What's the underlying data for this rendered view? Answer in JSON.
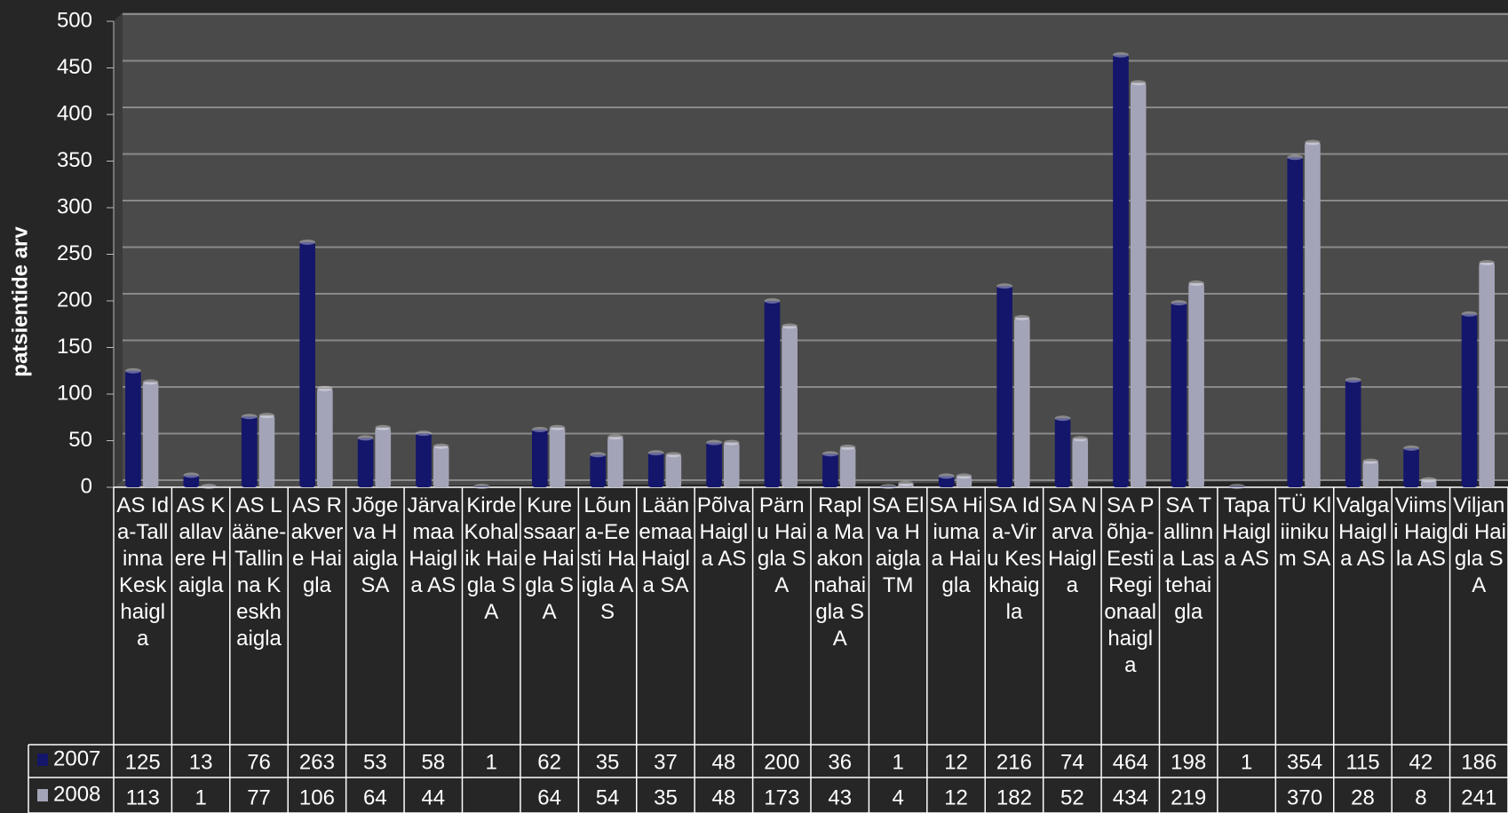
{
  "chart_data": {
    "type": "bar",
    "ylabel": "patsientide arv",
    "categories": [
      "AS Ida-Tallinna Keskhaigla",
      "AS Kallavere Haigla",
      "AS Lääne-Tallinna Keskhaigla",
      "AS Rakvere Haigla",
      "Jõgeva Haigla SA",
      "Järvamaa Haigla AS",
      "Kirde Kohalik Haigla SA",
      "Kuressaare Haigla SA",
      "Lõuna-Eesti Haigla AS",
      "Läänemaa Haigla SA",
      "Põlva Haigla AS",
      "Pärnu Haigla SA",
      "Rapla Maakonnahaigla SA",
      "SA Elva Haigla TM",
      "SA Hiiumaa Haigla",
      "SA Ida-Viru Keskhaigla",
      "SA Narva Haigla",
      "SA Põhja-Eesti Regionaalhaigla",
      "SA Tallinna Lastehaigla",
      "Tapa Haigla AS",
      "TÜ Kliinikum SA",
      "Valga Haigla AS",
      "Viimsi Haigla AS",
      "Viljandi Haigla SA"
    ],
    "series": [
      {
        "name": "2007",
        "color": "#14166b",
        "values": [
          125,
          13,
          76,
          263,
          53,
          58,
          1,
          62,
          35,
          37,
          48,
          200,
          36,
          1,
          12,
          216,
          74,
          464,
          198,
          1,
          354,
          115,
          42,
          186
        ]
      },
      {
        "name": "2008",
        "color": "#a4a4b8",
        "values": [
          113,
          1,
          77,
          106,
          64,
          44,
          null,
          64,
          54,
          35,
          48,
          173,
          43,
          4,
          12,
          182,
          52,
          434,
          219,
          null,
          370,
          28,
          8,
          241
        ]
      }
    ],
    "ylim": [
      0,
      500
    ],
    "yticks": [
      0,
      50,
      100,
      150,
      200,
      250,
      300,
      350,
      400,
      450,
      500
    ],
    "grid": true
  }
}
